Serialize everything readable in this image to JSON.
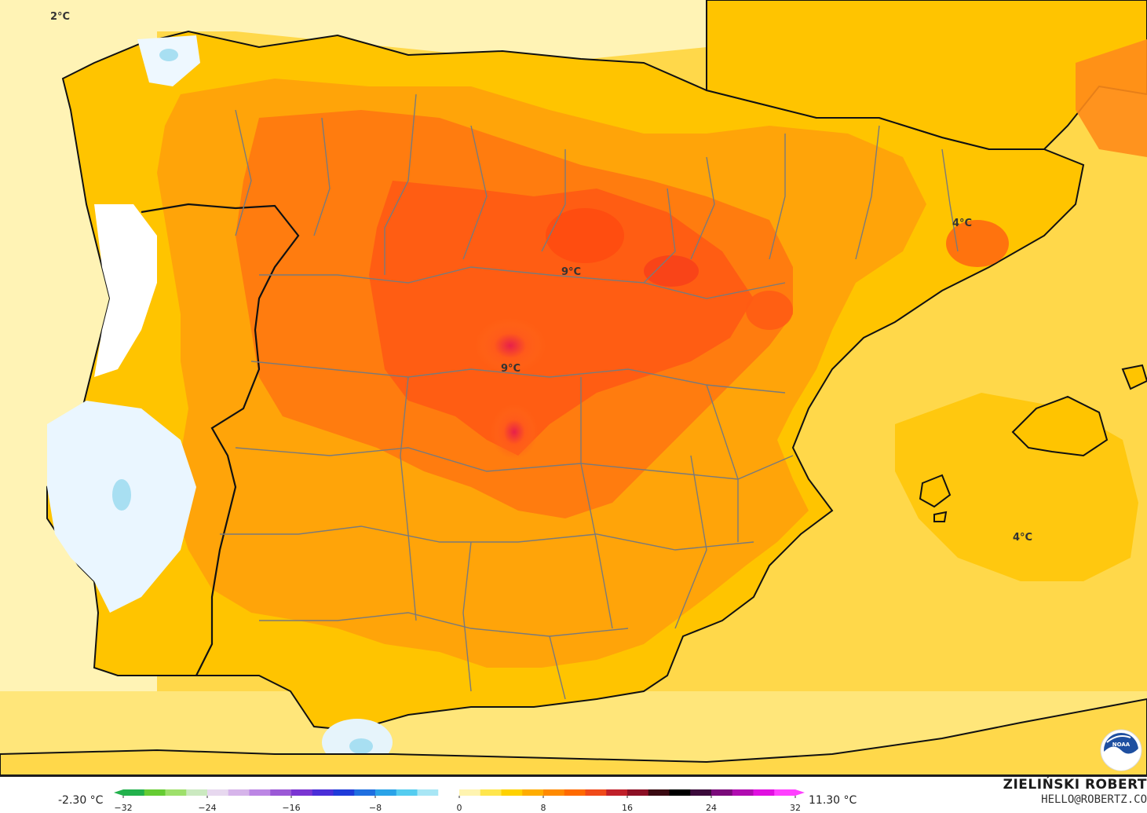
{
  "map": {
    "temperature_labels": [
      {
        "id": "corner",
        "text": "2°C"
      },
      {
        "id": "madrid-north",
        "text": "9°C"
      },
      {
        "id": "madrid-south",
        "text": "9°C"
      },
      {
        "id": "catalonia",
        "text": "4°C"
      },
      {
        "id": "balearic-sea",
        "text": "4°C"
      }
    ]
  },
  "legend": {
    "min_label": "-2.30 °C",
    "max_label": "11.30 °C",
    "ticks": [
      "−32",
      "−24",
      "−16",
      "−8",
      "0",
      "8",
      "16",
      "24",
      "32"
    ],
    "color_stops": [
      "#22b14c",
      "#66cc33",
      "#9ee06b",
      "#cbe9c0",
      "#e7d8ef",
      "#d6b4ea",
      "#bc86e4",
      "#9b59d6",
      "#7a35d2",
      "#4a2ed8",
      "#1f3bd9",
      "#1f6fe0",
      "#2aa3e8",
      "#55cdf0",
      "#a8e6f5",
      "#ffffff",
      "#fff4b0",
      "#ffe64d",
      "#ffd200",
      "#ffad00",
      "#ff8a00",
      "#ff6a00",
      "#f04a1a",
      "#c0202a",
      "#8c1025",
      "#3a0a12",
      "#000000",
      "#3b0a3b",
      "#7a0a7a",
      "#b00cb0",
      "#e010e0",
      "#ff40ff"
    ]
  },
  "credit": {
    "name": "ZIELIŃSKI ROBERT",
    "email": "HELLO@ROBERTZ.CO"
  },
  "logo": {
    "icon": "noaa-logo",
    "text": "NOAA"
  },
  "colors": {
    "sea_warm": "#ffd84a",
    "coast_cool": "#fff3b5",
    "core_hot": "#ff8c1a",
    "hotspot": "#e8204a",
    "border": "#111111"
  }
}
